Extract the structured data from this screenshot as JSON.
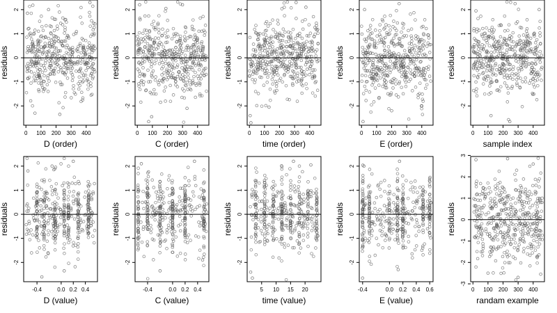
{
  "figure": {
    "layout": "2 rows x 5 columns of residual scatter plots",
    "point_style": "open circle",
    "point_color": "#555555",
    "reference_line": {
      "y": 0,
      "color": "#000000"
    }
  },
  "chart_data": [
    {
      "type": "scatter",
      "xlabel": "D (order)",
      "ylabel": "residuals",
      "xlim": [
        -15,
        475
      ],
      "ylim": [
        -2.8,
        2.4
      ],
      "xticks": [
        0,
        100,
        200,
        300,
        400
      ],
      "xticklabels": [
        "0",
        "100",
        "200",
        "300",
        "400"
      ],
      "yticks": [
        -2,
        -1,
        0,
        1,
        2
      ],
      "yticklabels": [
        "-2",
        "-1",
        "0",
        "1",
        "2"
      ],
      "hline": 0,
      "points": {
        "generator": "order",
        "n": 440,
        "x_range": [
          0,
          460
        ],
        "residual_sd": 0.8,
        "outliers": [
          [
            10,
            1.85
          ],
          [
            150,
            2.0
          ],
          [
            60,
            -2.3
          ],
          [
            225,
            -2.35
          ],
          [
            425,
            2.3
          ],
          [
            5,
            -0.35
          ]
        ]
      }
    },
    {
      "type": "scatter",
      "xlabel": "C (order)",
      "ylabel": "residuals",
      "xlim": [
        -15,
        475
      ],
      "ylim": [
        -2.8,
        2.4
      ],
      "xticks": [
        0,
        100,
        200,
        300,
        400
      ],
      "xticklabels": [
        "0",
        "100",
        "200",
        "300",
        "400"
      ],
      "yticks": [
        -2,
        -1,
        0,
        1,
        2
      ],
      "yticklabels": [
        "-2",
        "-1",
        "0",
        "1",
        "2"
      ],
      "hline": 0,
      "points": {
        "generator": "order",
        "n": 440,
        "x_range": [
          0,
          460
        ],
        "residual_sd": 0.8,
        "outliers": [
          [
            15,
            2.2
          ],
          [
            95,
            -2.45
          ],
          [
            75,
            -2.65
          ],
          [
            300,
            2.2
          ],
          [
            330,
            -2.1
          ],
          [
            190,
            2.05
          ]
        ]
      }
    },
    {
      "type": "scatter",
      "xlabel": "time (order)",
      "ylabel": "residuals",
      "xlim": [
        -15,
        475
      ],
      "ylim": [
        -2.8,
        2.4
      ],
      "xticks": [
        0,
        100,
        200,
        300,
        400
      ],
      "xticklabels": [
        "0",
        "100",
        "200",
        "300",
        "400"
      ],
      "yticks": [
        -2,
        -1,
        0,
        1,
        2
      ],
      "yticklabels": [
        "-2",
        "-1",
        "0",
        "1",
        "2"
      ],
      "hline": 0,
      "points": {
        "generator": "order",
        "n": 440,
        "x_range": [
          0,
          460
        ],
        "residual_sd": 0.8,
        "outliers": [
          [
            5,
            -2.4
          ],
          [
            10,
            -2.7
          ],
          [
            310,
            2.3
          ],
          [
            130,
            -2.05
          ],
          [
            375,
            2.1
          ]
        ]
      }
    },
    {
      "type": "scatter",
      "xlabel": "E (order)",
      "ylabel": "residuals",
      "xlim": [
        -15,
        475
      ],
      "ylim": [
        -2.8,
        2.4
      ],
      "xticks": [
        0,
        100,
        200,
        300,
        400
      ],
      "xticklabels": [
        "0",
        "100",
        "200",
        "300",
        "400"
      ],
      "yticks": [
        -2,
        -1,
        0,
        1,
        2
      ],
      "yticklabels": [
        "-2",
        "-1",
        "0",
        "1",
        "2"
      ],
      "hline": 0,
      "points": {
        "generator": "order",
        "n": 440,
        "x_range": [
          0,
          460
        ],
        "residual_sd": 0.8,
        "outliers": [
          [
            10,
            -2.65
          ],
          [
            20,
            2.0
          ],
          [
            250,
            2.25
          ],
          [
            400,
            -2.0
          ],
          [
            200,
            -2.2
          ]
        ]
      }
    },
    {
      "type": "scatter",
      "xlabel": "sample index",
      "ylabel": "residuals",
      "xlim": [
        -15,
        475
      ],
      "ylim": [
        -2.8,
        2.4
      ],
      "xticks": [
        0,
        100,
        200,
        300,
        400
      ],
      "xticklabels": [
        "0",
        "100",
        "200",
        "300",
        "400"
      ],
      "yticks": [
        -2,
        -1,
        0,
        1,
        2
      ],
      "yticklabels": [
        "-2",
        "-1",
        "0",
        "1",
        "2"
      ],
      "hline": 0,
      "points": {
        "generator": "order",
        "n": 440,
        "x_range": [
          0,
          460
        ],
        "residual_sd": 0.8,
        "outliers": [
          [
            245,
            -2.65
          ],
          [
            120,
            -2.4
          ],
          [
            280,
            2.25
          ],
          [
            440,
            2.0
          ],
          [
            20,
            1.95
          ]
        ]
      }
    },
    {
      "type": "scatter",
      "xlabel": "D (value)",
      "ylabel": "residuals",
      "xlim": [
        -0.62,
        0.6
      ],
      "ylim": [
        -2.8,
        2.4
      ],
      "xticks": [
        -0.4,
        0.0,
        0.2,
        0.4
      ],
      "xticklabels": [
        "-0.4",
        "0.0",
        "0.2",
        "0.4"
      ],
      "yticks": [
        -2,
        -1,
        0,
        1,
        2
      ],
      "yticklabels": [
        "-2",
        "-1",
        "0",
        "1",
        "2"
      ],
      "hline": 0,
      "points": {
        "generator": "value",
        "n": 440,
        "x_range": [
          -0.58,
          0.56
        ],
        "residual_sd": 0.75,
        "clusters": [
          -0.4,
          -0.28,
          -0.1,
          0.05,
          0.12,
          0.28,
          0.45
        ],
        "outliers": [
          [
            -0.55,
            1.8
          ],
          [
            -0.32,
            -2.6
          ],
          [
            0.05,
            -2.35
          ],
          [
            0.2,
            2.2
          ],
          [
            -0.15,
            2.0
          ]
        ]
      }
    },
    {
      "type": "scatter",
      "xlabel": "C (value)",
      "ylabel": "residuals",
      "xlim": [
        -0.6,
        0.58
      ],
      "ylim": [
        -2.8,
        2.4
      ],
      "xticks": [
        -0.4,
        0.0,
        0.2,
        0.4
      ],
      "xticklabels": [
        "-0.4",
        "0.0",
        "0.2",
        "0.4"
      ],
      "yticks": [
        -2,
        -1,
        0,
        1,
        2
      ],
      "yticklabels": [
        "-2",
        "-1",
        "0",
        "1",
        "2"
      ],
      "hline": 0,
      "points": {
        "generator": "value",
        "n": 440,
        "x_range": [
          -0.55,
          0.55
        ],
        "residual_sd": 0.75,
        "clusters": [
          -0.55,
          -0.4,
          -0.2,
          0.0,
          0.2,
          0.5
        ],
        "outliers": [
          [
            -0.5,
            2.1
          ],
          [
            -0.2,
            -2.35
          ],
          [
            0.35,
            2.2
          ],
          [
            0.48,
            -1.9
          ]
        ]
      }
    },
    {
      "type": "scatter",
      "xlabel": "time (value)",
      "ylabel": "residuals",
      "xlim": [
        0,
        25.5
      ],
      "ylim": [
        -2.8,
        2.4
      ],
      "xticks": [
        5,
        10,
        15,
        20
      ],
      "xticklabels": [
        "5",
        "10",
        "15",
        "20"
      ],
      "yticks": [
        -2,
        -1,
        0,
        1,
        2
      ],
      "yticklabels": [
        "-2",
        "-1",
        "0",
        "1",
        "2"
      ],
      "hline": 0,
      "points": {
        "generator": "value",
        "n": 440,
        "x_range": [
          1,
          24.5
        ],
        "residual_sd": 0.75,
        "clusters": [
          3,
          6,
          9,
          12,
          15,
          18,
          21,
          24
        ],
        "outliers": [
          [
            1.2,
            -2.4
          ],
          [
            1.8,
            -2.65
          ],
          [
            16,
            2.2
          ],
          [
            22,
            2.05
          ]
        ]
      }
    },
    {
      "type": "scatter",
      "xlabel": "E (value)",
      "ylabel": "residuals",
      "xlim": [
        -0.45,
        0.65
      ],
      "ylim": [
        -2.8,
        2.4
      ],
      "xticks": [
        -0.4,
        0.0,
        0.2,
        0.4,
        0.6
      ],
      "xticklabels": [
        "-0.4",
        "0.0",
        "0.2",
        "0.4",
        "0.6"
      ],
      "yticks": [
        -2,
        -1,
        0,
        1,
        2
      ],
      "yticklabels": [
        "-2",
        "-1",
        "0",
        "1",
        "2"
      ],
      "hline": 0,
      "points": {
        "generator": "value",
        "n": 440,
        "x_range": [
          -0.4,
          0.62
        ],
        "residual_sd": 0.75,
        "clusters": [
          -0.4,
          -0.3,
          0.0,
          0.12,
          0.2,
          0.5,
          0.6
        ],
        "outliers": [
          [
            -0.4,
            -2.65
          ],
          [
            -0.38,
            2.0
          ],
          [
            0.15,
            2.2
          ],
          [
            0.13,
            -2.3
          ]
        ]
      }
    },
    {
      "type": "scatter",
      "xlabel": "randam example",
      "ylabel": "residuals",
      "xlim": [
        -15,
        475
      ],
      "ylim": [
        -2.9,
        2.95
      ],
      "xticks": [
        0,
        100,
        200,
        300,
        400
      ],
      "xticklabels": [
        "0",
        "100",
        "200",
        "300",
        "400"
      ],
      "yticks": [
        -3,
        -2,
        -1,
        0,
        1,
        2,
        3
      ],
      "yticklabels": [
        "-3",
        "-2",
        "-1",
        "0",
        "1",
        "2",
        "3"
      ],
      "hline": 0,
      "points": {
        "generator": "order",
        "n": 440,
        "x_range": [
          0,
          460
        ],
        "residual_sd": 1.0,
        "outliers": [
          [
            20,
            2.8
          ],
          [
            230,
            2.85
          ],
          [
            300,
            -2.7
          ],
          [
            400,
            2.6
          ],
          [
            100,
            -2.5
          ],
          [
            450,
            -2.55
          ]
        ]
      }
    }
  ]
}
